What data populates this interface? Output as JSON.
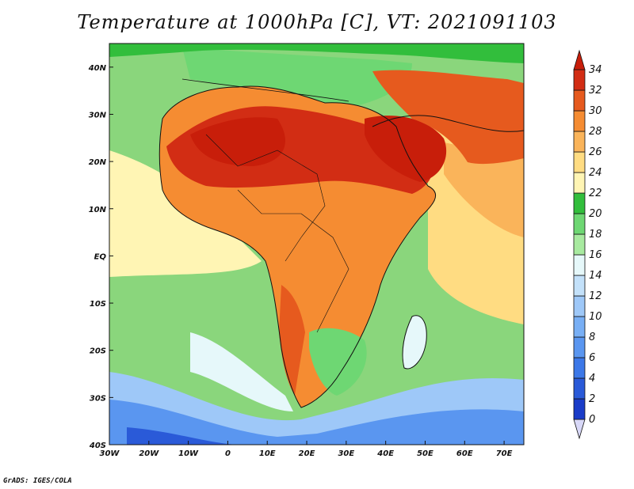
{
  "title": "Temperature at 1000hPa [C], VT: 2021091103",
  "credit": "GrADS: IGES/COLA",
  "map": {
    "lon_labels": [
      "30W",
      "20W",
      "10W",
      "0",
      "10E",
      "20E",
      "30E",
      "40E",
      "50E",
      "60E",
      "70E"
    ],
    "lat_labels": [
      "40N",
      "30N",
      "20N",
      "10N",
      "EQ",
      "10S",
      "20S",
      "30S",
      "40S"
    ],
    "lon_range": [
      -30,
      75
    ],
    "lat_range": [
      -40,
      45
    ]
  },
  "colorbar": {
    "labels": [
      "0",
      "2",
      "4",
      "6",
      "8",
      "10",
      "12",
      "14",
      "16",
      "18",
      "20",
      "22",
      "24",
      "26",
      "28",
      "30",
      "32",
      "34"
    ],
    "colors": [
      "#1e1e96",
      "#1a3cc8",
      "#2a5ad8",
      "#3c78e8",
      "#5a96f0",
      "#78aff5",
      "#9ec8f8",
      "#c3e1fa",
      "#e6f8fa",
      "#a8eaa0",
      "#6ed773",
      "#32be3c",
      "#fff5b4",
      "#ffdc82",
      "#fab45a",
      "#f58c32",
      "#e65a1e",
      "#d22d14",
      "#c81e0a"
    ]
  },
  "legend": {
    "placement": "right",
    "units": "C"
  }
}
